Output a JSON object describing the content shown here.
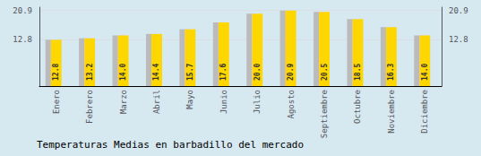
{
  "chart_data": {
    "type": "bar",
    "title": "Temperaturas Medias en barbadillo del mercado",
    "categories": [
      "Enero",
      "Febrero",
      "Marzo",
      "Abril",
      "Mayo",
      "Junio",
      "Julio",
      "Agosto",
      "Septiembre",
      "Octubre",
      "Noviembre",
      "Diciembre"
    ],
    "values": [
      12.8,
      13.2,
      14.0,
      14.4,
      15.7,
      17.6,
      20.0,
      20.9,
      20.5,
      18.5,
      16.3,
      14.0
    ],
    "value_labels": [
      "12.8",
      "13.2",
      "14.0",
      "14.4",
      "15.7",
      "17.6",
      "20.0",
      "20.9",
      "20.5",
      "18.5",
      "16.3",
      "14.0"
    ],
    "data_labels": true,
    "color": "#FFD700",
    "ylim": [
      0,
      21.8
    ],
    "yticks": [
      12.8,
      20.9
    ],
    "y2lim": [
      0,
      21.8
    ],
    "y2ticks": [
      12.8,
      20.9
    ],
    "grid": true
  }
}
